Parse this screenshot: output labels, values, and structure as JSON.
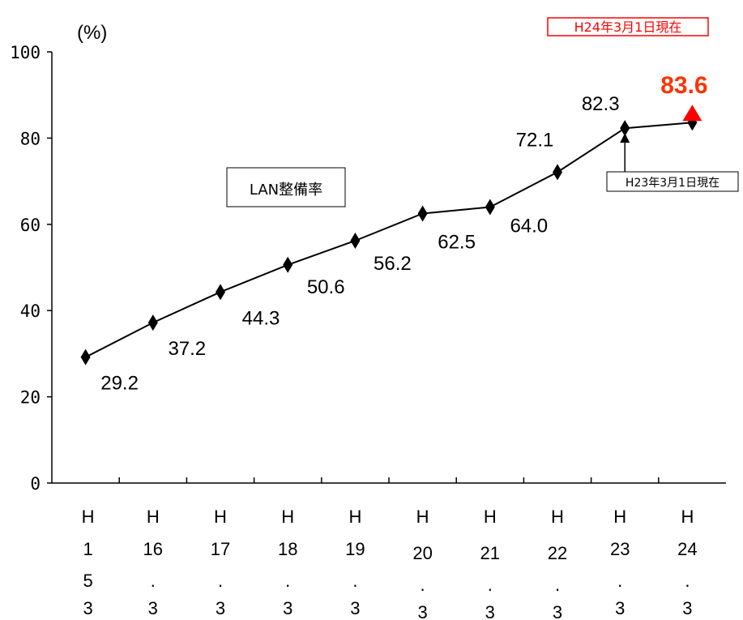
{
  "chart_data": {
    "type": "line",
    "ylabel": "(%)",
    "ylim": [
      0,
      100
    ],
    "yticks": [
      "0",
      "20",
      "40",
      "60",
      "80",
      "100"
    ],
    "categories": [
      [
        "H",
        "1",
        "5",
        "3"
      ],
      [
        "H",
        "16",
        ".",
        "3"
      ],
      [
        "H",
        "17",
        ".",
        "3"
      ],
      [
        "H",
        "18",
        ".",
        "3"
      ],
      [
        "H",
        "19",
        ".",
        "3"
      ],
      [
        "H",
        "20",
        ".",
        "3"
      ],
      [
        "H",
        "21",
        ".",
        "3"
      ],
      [
        "H",
        "22",
        ".",
        "3"
      ],
      [
        "H",
        "23",
        ".",
        "3"
      ],
      [
        "H",
        "24",
        ".",
        "3"
      ]
    ],
    "series": [
      {
        "name": "LAN整備率",
        "values": [
          29.2,
          37.2,
          44.3,
          50.6,
          56.2,
          62.5,
          64.0,
          72.1,
          82.3,
          83.6
        ],
        "data_labels": [
          "29.2",
          "37.2",
          "44.3",
          "50.6",
          "56.2",
          "62.5",
          "64.0",
          "72.1",
          "82.3",
          "83.6"
        ]
      }
    ],
    "legend_text": "LAN整備率",
    "stamp": "H24年3月1日現在",
    "annotation": "H23年3月1日現在",
    "highlight_index": 9,
    "grid": false,
    "colors": {
      "line": "#000000",
      "marker": "#000000",
      "highlight": "#ff0000",
      "highlight_label": "#ff3300",
      "stamp": "#ff0000"
    }
  }
}
